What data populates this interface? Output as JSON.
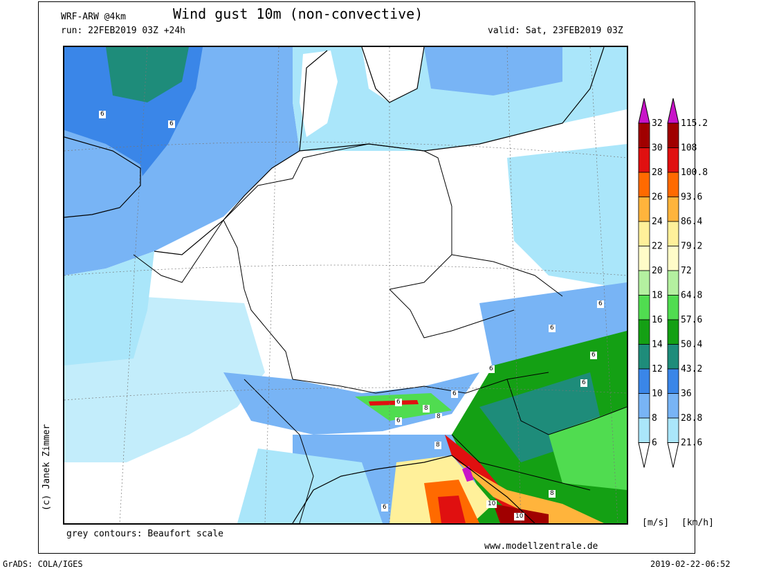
{
  "header": {
    "model": "WRF-ARW @4km",
    "title": "Wind gust 10m (non-convective)",
    "run": "run: 22FEB2019 03Z +24h",
    "valid": "valid: Sat, 23FEB2019 03Z"
  },
  "footer": {
    "note": "grey contours: Beaufort scale",
    "website": "www.modellzentrale.de",
    "grads": "GrADS: COLA/IGES",
    "timestamp": "2019-02-22-06:52",
    "copyright": "(c) Janek Zimmer"
  },
  "legend": {
    "ms_labels": [
      "32",
      "30",
      "28",
      "26",
      "24",
      "22",
      "20",
      "18",
      "16",
      "14",
      "12",
      "10",
      "8",
      "6"
    ],
    "kmh_labels": [
      "115.2",
      "108",
      "100.8",
      "93.6",
      "86.4",
      "79.2",
      "72",
      "64.8",
      "57.6",
      "50.4",
      "43.2",
      "36",
      "28.8",
      "21.6"
    ],
    "colors": [
      "#a00000",
      "#e01010",
      "#ff6a00",
      "#ffb43c",
      "#fff09a",
      "#fffcc8",
      "#b4f0a0",
      "#50dc50",
      "#14a014",
      "#1e8c7a",
      "#3a86e8",
      "#78b4f5",
      "#aae6fa"
    ],
    "top_color": "#c814c8",
    "unit_ms": "[m/s]",
    "unit_kmh": "[km/h]"
  },
  "contour_labels": [
    {
      "text": "6"
    },
    {
      "text": "6"
    },
    {
      "text": "6"
    },
    {
      "text": "6"
    },
    {
      "text": "6"
    },
    {
      "text": "6"
    },
    {
      "text": "6"
    },
    {
      "text": "6"
    },
    {
      "text": "6"
    },
    {
      "text": "6"
    },
    {
      "text": "8"
    },
    {
      "text": "8"
    },
    {
      "text": "8"
    },
    {
      "text": "8"
    },
    {
      "text": "10"
    },
    {
      "text": "10"
    },
    {
      "text": "6"
    }
  ]
}
